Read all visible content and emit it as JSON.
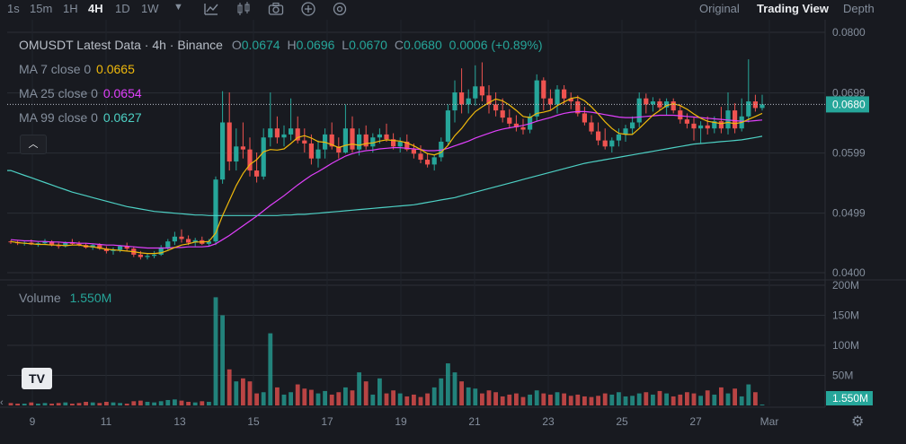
{
  "toolbar": {
    "timeframes": [
      "1s",
      "15m",
      "1H",
      "4H",
      "1D",
      "1W"
    ],
    "active_timeframe": "4H",
    "dropdown_icon": "chevron-down-icon",
    "icons": [
      "indicator-icon",
      "candle-type-icon",
      "camera-icon",
      "plus-circle-icon",
      "settings-dial-icon"
    ],
    "views": [
      "Original",
      "Trading View",
      "Depth"
    ],
    "active_view": "Trading View"
  },
  "legend": {
    "title": "OMUSDT Latest Data · 4h · Binance",
    "open_label": "O",
    "open": "0.0674",
    "high_label": "H",
    "high": "0.0696",
    "low_label": "L",
    "low": "0.0670",
    "close_label": "C",
    "close": "0.0680",
    "change": "0.0006 (+0.89%)",
    "ma7_label": "MA 7 close 0",
    "ma7_value": "0.0665",
    "ma25_label": "MA 25 close 0",
    "ma25_value": "0.0654",
    "ma99_label": "MA 99 close 0",
    "ma99_value": "0.0627",
    "collapse_icon": "chevron-up-icon"
  },
  "volume": {
    "label": "Volume",
    "value": "1.550M",
    "tag": "1.550M"
  },
  "logo": {
    "name": "tradingview-logo-icon",
    "text": "TV"
  },
  "settings_icon": "gear-icon",
  "colors": {
    "bg": "#181a20",
    "up": "#26a69a",
    "down": "#ef5350",
    "ma7": "#f0b90b",
    "ma25": "#e040fb",
    "ma99": "#4dd0c4",
    "grid": "#2b2f36",
    "text": "#848e9c",
    "price_tag": "#26a69a"
  },
  "chart_data": [
    {
      "type": "candlestick",
      "y_ticks": [
        "0.0800",
        "0.0699",
        "0.0599",
        "0.0499",
        "0.0400"
      ],
      "ylim": [
        0.04,
        0.08
      ],
      "last_price": "0.0680",
      "x_ticks": [
        "9",
        "11",
        "13",
        "15",
        "17",
        "19",
        "21",
        "23",
        "25",
        "27",
        "Mar"
      ],
      "candles": [
        [
          0.0452,
          0.0454,
          0.0448,
          0.0451
        ],
        [
          0.0451,
          0.0453,
          0.0446,
          0.0449
        ],
        [
          0.0449,
          0.0452,
          0.0445,
          0.045
        ],
        [
          0.045,
          0.0455,
          0.0446,
          0.0447
        ],
        [
          0.0447,
          0.0451,
          0.0443,
          0.0449
        ],
        [
          0.0449,
          0.0456,
          0.0446,
          0.0452
        ],
        [
          0.0452,
          0.0454,
          0.0444,
          0.0446
        ],
        [
          0.0446,
          0.045,
          0.044,
          0.0444
        ],
        [
          0.0444,
          0.0452,
          0.0442,
          0.045
        ],
        [
          0.045,
          0.0456,
          0.0446,
          0.0448
        ],
        [
          0.0448,
          0.0452,
          0.0444,
          0.0446
        ],
        [
          0.0446,
          0.0449,
          0.044,
          0.0442
        ],
        [
          0.0442,
          0.0448,
          0.0438,
          0.0446
        ],
        [
          0.0446,
          0.0449,
          0.0438,
          0.044
        ],
        [
          0.044,
          0.0444,
          0.0432,
          0.0436
        ],
        [
          0.0436,
          0.0442,
          0.043,
          0.0438
        ],
        [
          0.0438,
          0.0446,
          0.0434,
          0.0444
        ],
        [
          0.0444,
          0.045,
          0.0436,
          0.044
        ],
        [
          0.044,
          0.0444,
          0.0426,
          0.043
        ],
        [
          0.043,
          0.0436,
          0.0422,
          0.0426
        ],
        [
          0.0426,
          0.0432,
          0.0422,
          0.0428
        ],
        [
          0.0428,
          0.0436,
          0.0424,
          0.043
        ],
        [
          0.043,
          0.0446,
          0.0428,
          0.0442
        ],
        [
          0.0442,
          0.0456,
          0.0438,
          0.0452
        ],
        [
          0.0452,
          0.0468,
          0.0446,
          0.046
        ],
        [
          0.046,
          0.0472,
          0.045,
          0.0456
        ],
        [
          0.0456,
          0.0462,
          0.0446,
          0.045
        ],
        [
          0.045,
          0.0458,
          0.0444,
          0.0454
        ],
        [
          0.0454,
          0.046,
          0.0446,
          0.0448
        ],
        [
          0.0448,
          0.0456,
          0.0444,
          0.0452
        ],
        [
          0.0452,
          0.056,
          0.0446,
          0.0555
        ],
        [
          0.0555,
          0.0702,
          0.0548,
          0.065
        ],
        [
          0.065,
          0.07,
          0.057,
          0.0585
        ],
        [
          0.0585,
          0.064,
          0.057,
          0.061
        ],
        [
          0.061,
          0.065,
          0.059,
          0.0605
        ],
        [
          0.0605,
          0.0625,
          0.056,
          0.057
        ],
        [
          0.057,
          0.06,
          0.055,
          0.056
        ],
        [
          0.056,
          0.064,
          0.0555,
          0.0625
        ],
        [
          0.0625,
          0.07,
          0.061,
          0.064
        ],
        [
          0.064,
          0.066,
          0.0615,
          0.0625
        ],
        [
          0.0625,
          0.0645,
          0.061,
          0.063
        ],
        [
          0.063,
          0.069,
          0.062,
          0.064
        ],
        [
          0.064,
          0.066,
          0.0615,
          0.062
        ],
        [
          0.062,
          0.064,
          0.06,
          0.0615
        ],
        [
          0.0615,
          0.063,
          0.058,
          0.059
        ],
        [
          0.059,
          0.062,
          0.0575,
          0.0605
        ],
        [
          0.0605,
          0.064,
          0.059,
          0.063
        ],
        [
          0.063,
          0.065,
          0.0605,
          0.061
        ],
        [
          0.061,
          0.0625,
          0.059,
          0.06
        ],
        [
          0.06,
          0.068,
          0.0598,
          0.064
        ],
        [
          0.064,
          0.066,
          0.06,
          0.0605
        ],
        [
          0.0605,
          0.064,
          0.0595,
          0.063
        ],
        [
          0.063,
          0.0645,
          0.0605,
          0.061
        ],
        [
          0.061,
          0.0632,
          0.06,
          0.0625
        ],
        [
          0.0625,
          0.064,
          0.0615,
          0.063
        ],
        [
          0.063,
          0.0648,
          0.0618,
          0.0622
        ],
        [
          0.0622,
          0.0632,
          0.0605,
          0.061
        ],
        [
          0.061,
          0.0625,
          0.06,
          0.0618
        ],
        [
          0.0618,
          0.063,
          0.0602,
          0.0605
        ],
        [
          0.0605,
          0.0615,
          0.059,
          0.0598
        ],
        [
          0.0598,
          0.0612,
          0.0582,
          0.0588
        ],
        [
          0.0588,
          0.0598,
          0.0575,
          0.058
        ],
        [
          0.058,
          0.0596,
          0.057,
          0.0592
        ],
        [
          0.0592,
          0.0625,
          0.0585,
          0.0618
        ],
        [
          0.0618,
          0.068,
          0.0612,
          0.067
        ],
        [
          0.067,
          0.072,
          0.065,
          0.07
        ],
        [
          0.07,
          0.074,
          0.0665,
          0.068
        ],
        [
          0.068,
          0.0705,
          0.0665,
          0.069
        ],
        [
          0.069,
          0.0745,
          0.0678,
          0.071
        ],
        [
          0.071,
          0.075,
          0.0685,
          0.0695
        ],
        [
          0.0695,
          0.0712,
          0.0665,
          0.068
        ],
        [
          0.068,
          0.07,
          0.066,
          0.067
        ],
        [
          0.067,
          0.069,
          0.065,
          0.0658
        ],
        [
          0.0658,
          0.0672,
          0.064,
          0.0648
        ],
        [
          0.0648,
          0.0662,
          0.0635,
          0.0642
        ],
        [
          0.0642,
          0.0656,
          0.063,
          0.0638
        ],
        [
          0.0638,
          0.0665,
          0.0632,
          0.066
        ],
        [
          0.066,
          0.073,
          0.0652,
          0.072
        ],
        [
          0.072,
          0.0725,
          0.067,
          0.069
        ],
        [
          0.069,
          0.0705,
          0.067,
          0.068
        ],
        [
          0.068,
          0.0712,
          0.0665,
          0.0705
        ],
        [
          0.0705,
          0.0712,
          0.068,
          0.069
        ],
        [
          0.069,
          0.07,
          0.0672,
          0.0685
        ],
        [
          0.0685,
          0.0695,
          0.066,
          0.0665
        ],
        [
          0.0665,
          0.0676,
          0.0645,
          0.065
        ],
        [
          0.065,
          0.0662,
          0.063,
          0.0635
        ],
        [
          0.0635,
          0.065,
          0.0612,
          0.062
        ],
        [
          0.062,
          0.064,
          0.0605,
          0.061
        ],
        [
          0.061,
          0.0625,
          0.06,
          0.062
        ],
        [
          0.062,
          0.064,
          0.061,
          0.063
        ],
        [
          0.063,
          0.0646,
          0.0618,
          0.064
        ],
        [
          0.064,
          0.066,
          0.063,
          0.065
        ],
        [
          0.065,
          0.07,
          0.0642,
          0.069
        ],
        [
          0.069,
          0.0698,
          0.0665,
          0.068
        ],
        [
          0.068,
          0.0692,
          0.0668,
          0.0685
        ],
        [
          0.0685,
          0.069,
          0.067,
          0.0675
        ],
        [
          0.0675,
          0.069,
          0.0662,
          0.0685
        ],
        [
          0.0685,
          0.069,
          0.0665,
          0.067
        ],
        [
          0.067,
          0.068,
          0.0648,
          0.0655
        ],
        [
          0.0655,
          0.0665,
          0.064,
          0.0648
        ],
        [
          0.0648,
          0.0658,
          0.062,
          0.064
        ],
        [
          0.064,
          0.0652,
          0.0615,
          0.0645
        ],
        [
          0.0645,
          0.066,
          0.063,
          0.064
        ],
        [
          0.064,
          0.066,
          0.0632,
          0.0652
        ],
        [
          0.0652,
          0.0676,
          0.0632,
          0.064
        ],
        [
          0.064,
          0.07,
          0.063,
          0.067
        ],
        [
          0.067,
          0.0682,
          0.0632,
          0.064
        ],
        [
          0.064,
          0.069,
          0.0635,
          0.066
        ],
        [
          0.066,
          0.0755,
          0.065,
          0.0685
        ],
        [
          0.0685,
          0.0696,
          0.0668,
          0.0674
        ],
        [
          0.0674,
          0.0696,
          0.067,
          0.068
        ]
      ],
      "ma7": [
        0.0452,
        0.045,
        0.0449,
        0.0448,
        0.0447,
        0.0447,
        0.0446,
        0.0446,
        0.0445,
        0.0446,
        0.0446,
        0.0444,
        0.0443,
        0.0441,
        0.0439,
        0.0438,
        0.0437,
        0.0436,
        0.0435,
        0.0433,
        0.0432,
        0.0432,
        0.0433,
        0.0437,
        0.0442,
        0.0446,
        0.0448,
        0.0451,
        0.0451,
        0.0452,
        0.0466,
        0.0495,
        0.052,
        0.0545,
        0.0565,
        0.058,
        0.0588,
        0.0601,
        0.0605,
        0.0604,
        0.0606,
        0.0615,
        0.0625,
        0.0628,
        0.0624,
        0.0618,
        0.0617,
        0.0613,
        0.0608,
        0.0612,
        0.0614,
        0.0612,
        0.0615,
        0.0616,
        0.0619,
        0.0621,
        0.062,
        0.0619,
        0.0616,
        0.0611,
        0.0605,
        0.0598,
        0.0596,
        0.06,
        0.0612,
        0.0628,
        0.064,
        0.0655,
        0.0668,
        0.0676,
        0.0683,
        0.0689,
        0.0686,
        0.0679,
        0.067,
        0.066,
        0.0658,
        0.0665,
        0.0667,
        0.067,
        0.0678,
        0.0684,
        0.069,
        0.0692,
        0.0686,
        0.0676,
        0.0664,
        0.0651,
        0.064,
        0.0632,
        0.063,
        0.063,
        0.064,
        0.0651,
        0.0662,
        0.067,
        0.0678,
        0.0681,
        0.0678,
        0.0672,
        0.0664,
        0.0657,
        0.0652,
        0.065,
        0.0648,
        0.065,
        0.0648,
        0.065,
        0.0655,
        0.066,
        0.0665
      ],
      "ma25": [
        0.0455,
        0.0454,
        0.0453,
        0.0453,
        0.0452,
        0.0452,
        0.0451,
        0.0451,
        0.045,
        0.045,
        0.0449,
        0.0449,
        0.0448,
        0.0447,
        0.0446,
        0.0446,
        0.0445,
        0.0444,
        0.0443,
        0.0442,
        0.0441,
        0.0441,
        0.0441,
        0.0441,
        0.0442,
        0.0442,
        0.0443,
        0.0443,
        0.0443,
        0.0444,
        0.0448,
        0.0455,
        0.0462,
        0.047,
        0.0478,
        0.0486,
        0.0494,
        0.0503,
        0.0512,
        0.052,
        0.0528,
        0.0537,
        0.0546,
        0.0554,
        0.0562,
        0.0568,
        0.0575,
        0.0582,
        0.0588,
        0.0594,
        0.0598,
        0.0601,
        0.0603,
        0.0604,
        0.0606,
        0.0607,
        0.0608,
        0.0608,
        0.0607,
        0.0606,
        0.0605,
        0.0603,
        0.0603,
        0.0604,
        0.0607,
        0.0611,
        0.0615,
        0.0619,
        0.0624,
        0.0628,
        0.0632,
        0.0636,
        0.0639,
        0.0641,
        0.0643,
        0.0645,
        0.0648,
        0.0652,
        0.0655,
        0.0658,
        0.0662,
        0.0665,
        0.0667,
        0.0668,
        0.0668,
        0.0667,
        0.0665,
        0.0663,
        0.0661,
        0.0659,
        0.0658,
        0.0658,
        0.0659,
        0.066,
        0.0661,
        0.0662,
        0.0662,
        0.0662,
        0.0661,
        0.066,
        0.0659,
        0.0658,
        0.0657,
        0.0656,
        0.0655,
        0.0654,
        0.0653,
        0.0652,
        0.0652,
        0.0653,
        0.0654
      ],
      "ma99": [
        0.057,
        0.0566,
        0.0562,
        0.0558,
        0.0554,
        0.055,
        0.0546,
        0.0542,
        0.0538,
        0.0534,
        0.0531,
        0.0528,
        0.0525,
        0.0522,
        0.0519,
        0.0516,
        0.0513,
        0.051,
        0.0508,
        0.0506,
        0.0504,
        0.0502,
        0.0501,
        0.05,
        0.0499,
        0.0498,
        0.0497,
        0.0496,
        0.0496,
        0.0495,
        0.0495,
        0.0495,
        0.0495,
        0.0495,
        0.0495,
        0.0495,
        0.0495,
        0.0495,
        0.0495,
        0.0495,
        0.0496,
        0.0496,
        0.0497,
        0.0497,
        0.0498,
        0.0499,
        0.05,
        0.0501,
        0.0502,
        0.0503,
        0.0504,
        0.0505,
        0.0506,
        0.0507,
        0.0508,
        0.0509,
        0.051,
        0.0511,
        0.0512,
        0.0513,
        0.0515,
        0.0517,
        0.0519,
        0.0521,
        0.0523,
        0.0525,
        0.0528,
        0.0531,
        0.0534,
        0.0537,
        0.054,
        0.0543,
        0.0546,
        0.0549,
        0.0552,
        0.0555,
        0.0558,
        0.0561,
        0.0564,
        0.0567,
        0.057,
        0.0573,
        0.0576,
        0.0579,
        0.0582,
        0.0584,
        0.0586,
        0.0588,
        0.059,
        0.0592,
        0.0594,
        0.0596,
        0.0598,
        0.06,
        0.0602,
        0.0604,
        0.0606,
        0.0608,
        0.061,
        0.0612,
        0.0614,
        0.0615,
        0.0616,
        0.0617,
        0.0618,
        0.0619,
        0.062,
        0.0621,
        0.0623,
        0.0625,
        0.0627
      ]
    },
    {
      "type": "bar",
      "name": "Volume",
      "y_ticks": [
        "200M",
        "150M",
        "100M",
        "50M"
      ],
      "ylim": [
        0,
        200
      ],
      "unit": "M",
      "values": [
        4,
        3,
        3,
        5,
        3,
        4,
        3,
        4,
        5,
        3,
        4,
        6,
        5,
        4,
        6,
        5,
        4,
        3,
        7,
        8,
        6,
        5,
        7,
        9,
        10,
        8,
        6,
        5,
        7,
        6,
        180,
        150,
        60,
        40,
        45,
        40,
        20,
        22,
        120,
        30,
        18,
        22,
        35,
        28,
        26,
        20,
        24,
        18,
        22,
        30,
        25,
        55,
        40,
        18,
        45,
        20,
        25,
        20,
        15,
        18,
        14,
        20,
        30,
        45,
        70,
        55,
        40,
        30,
        28,
        20,
        25,
        22,
        15,
        18,
        20,
        14,
        18,
        25,
        20,
        18,
        22,
        20,
        16,
        18,
        15,
        14,
        16,
        20,
        18,
        22,
        15,
        16,
        20,
        22,
        18,
        24,
        20,
        15,
        18,
        22,
        20,
        16,
        25,
        18,
        30,
        20,
        28,
        15,
        35,
        22,
        1.55
      ]
    }
  ]
}
